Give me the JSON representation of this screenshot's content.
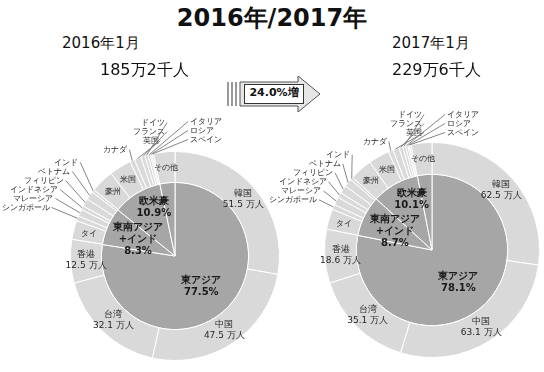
{
  "title": "2016年/2017年",
  "annotation": "24.0%増",
  "chart_data": [
    {
      "type": "doughnut",
      "title": "2016年1月",
      "subtitle": "185万2千人",
      "data_labels": true,
      "series": [
        {
          "categories": [
            "韓国",
            "中国",
            "台湾",
            "香港",
            "タイ",
            "シンガポール",
            "マレーシア",
            "インドネシア",
            "フィリピン",
            "ベトナム",
            "インド",
            "豪州",
            "米国",
            "カナダ",
            "英国",
            "フランス",
            "ドイツ",
            "イタリア",
            "ロシア",
            "スペイン",
            "その他"
          ],
          "values": [
            51.5,
            47.5,
            32.1,
            12.5,
            5.4,
            1.4,
            2.0,
            1.1,
            2.3,
            2.4,
            0.8,
            6.7,
            6.3,
            1.4,
            1.9,
            1.2,
            0.9,
            0.7,
            0.4,
            0.5,
            6.1
          ],
          "value_labels": [
            "51.5 万人",
            "47.5 万人",
            "32.1 万人",
            "12.5 万人",
            null,
            null,
            null,
            null,
            null,
            null,
            null,
            null,
            null,
            null,
            null,
            null,
            null,
            null,
            null,
            null,
            null
          ],
          "color": "#d9d9d9"
        },
        {
          "categories": [
            "東アジア",
            "東南アジア+インド",
            "欧米豪",
            null
          ],
          "values": [
            77.5,
            8.3,
            10.9,
            3.3
          ],
          "value_labels": [
            "77.5%",
            "8.3%",
            "10.9%",
            null
          ],
          "color": "#a6a6a6"
        }
      ]
    },
    {
      "type": "doughnut",
      "title": "2017年1月",
      "subtitle": "229万6千人",
      "data_labels": true,
      "series": [
        {
          "categories": [
            "韓国",
            "中国",
            "台湾",
            "香港",
            "タイ",
            "シンガポール",
            "マレーシア",
            "インドネシア",
            "フィリピン",
            "ベトナム",
            "インド",
            "豪州",
            "米国",
            "カナダ",
            "英国",
            "フランス",
            "ドイツ",
            "イタリア",
            "ロシア",
            "スペイン",
            "その他"
          ],
          "values": [
            62.5,
            63.1,
            35.1,
            18.6,
            7.0,
            1.7,
            2.8,
            1.8,
            2.8,
            2.8,
            1.0,
            7.8,
            7.3,
            1.6,
            2.2,
            1.3,
            1.0,
            0.8,
            0.5,
            0.6,
            7.2
          ],
          "value_labels": [
            "62.5 万人",
            "63.1 万人",
            "35.1 万人",
            "18.6 万人",
            null,
            null,
            null,
            null,
            null,
            null,
            null,
            null,
            null,
            null,
            null,
            null,
            null,
            null,
            null,
            null,
            null
          ],
          "color": "#d9d9d9"
        },
        {
          "categories": [
            "東アジア",
            "東南アジア+インド",
            "欧米豪",
            null
          ],
          "values": [
            78.1,
            8.7,
            10.1,
            3.1
          ],
          "value_labels": [
            "78.1%",
            "8.7%",
            "10.1%",
            null
          ],
          "color": "#a6a6a6"
        }
      ]
    }
  ]
}
